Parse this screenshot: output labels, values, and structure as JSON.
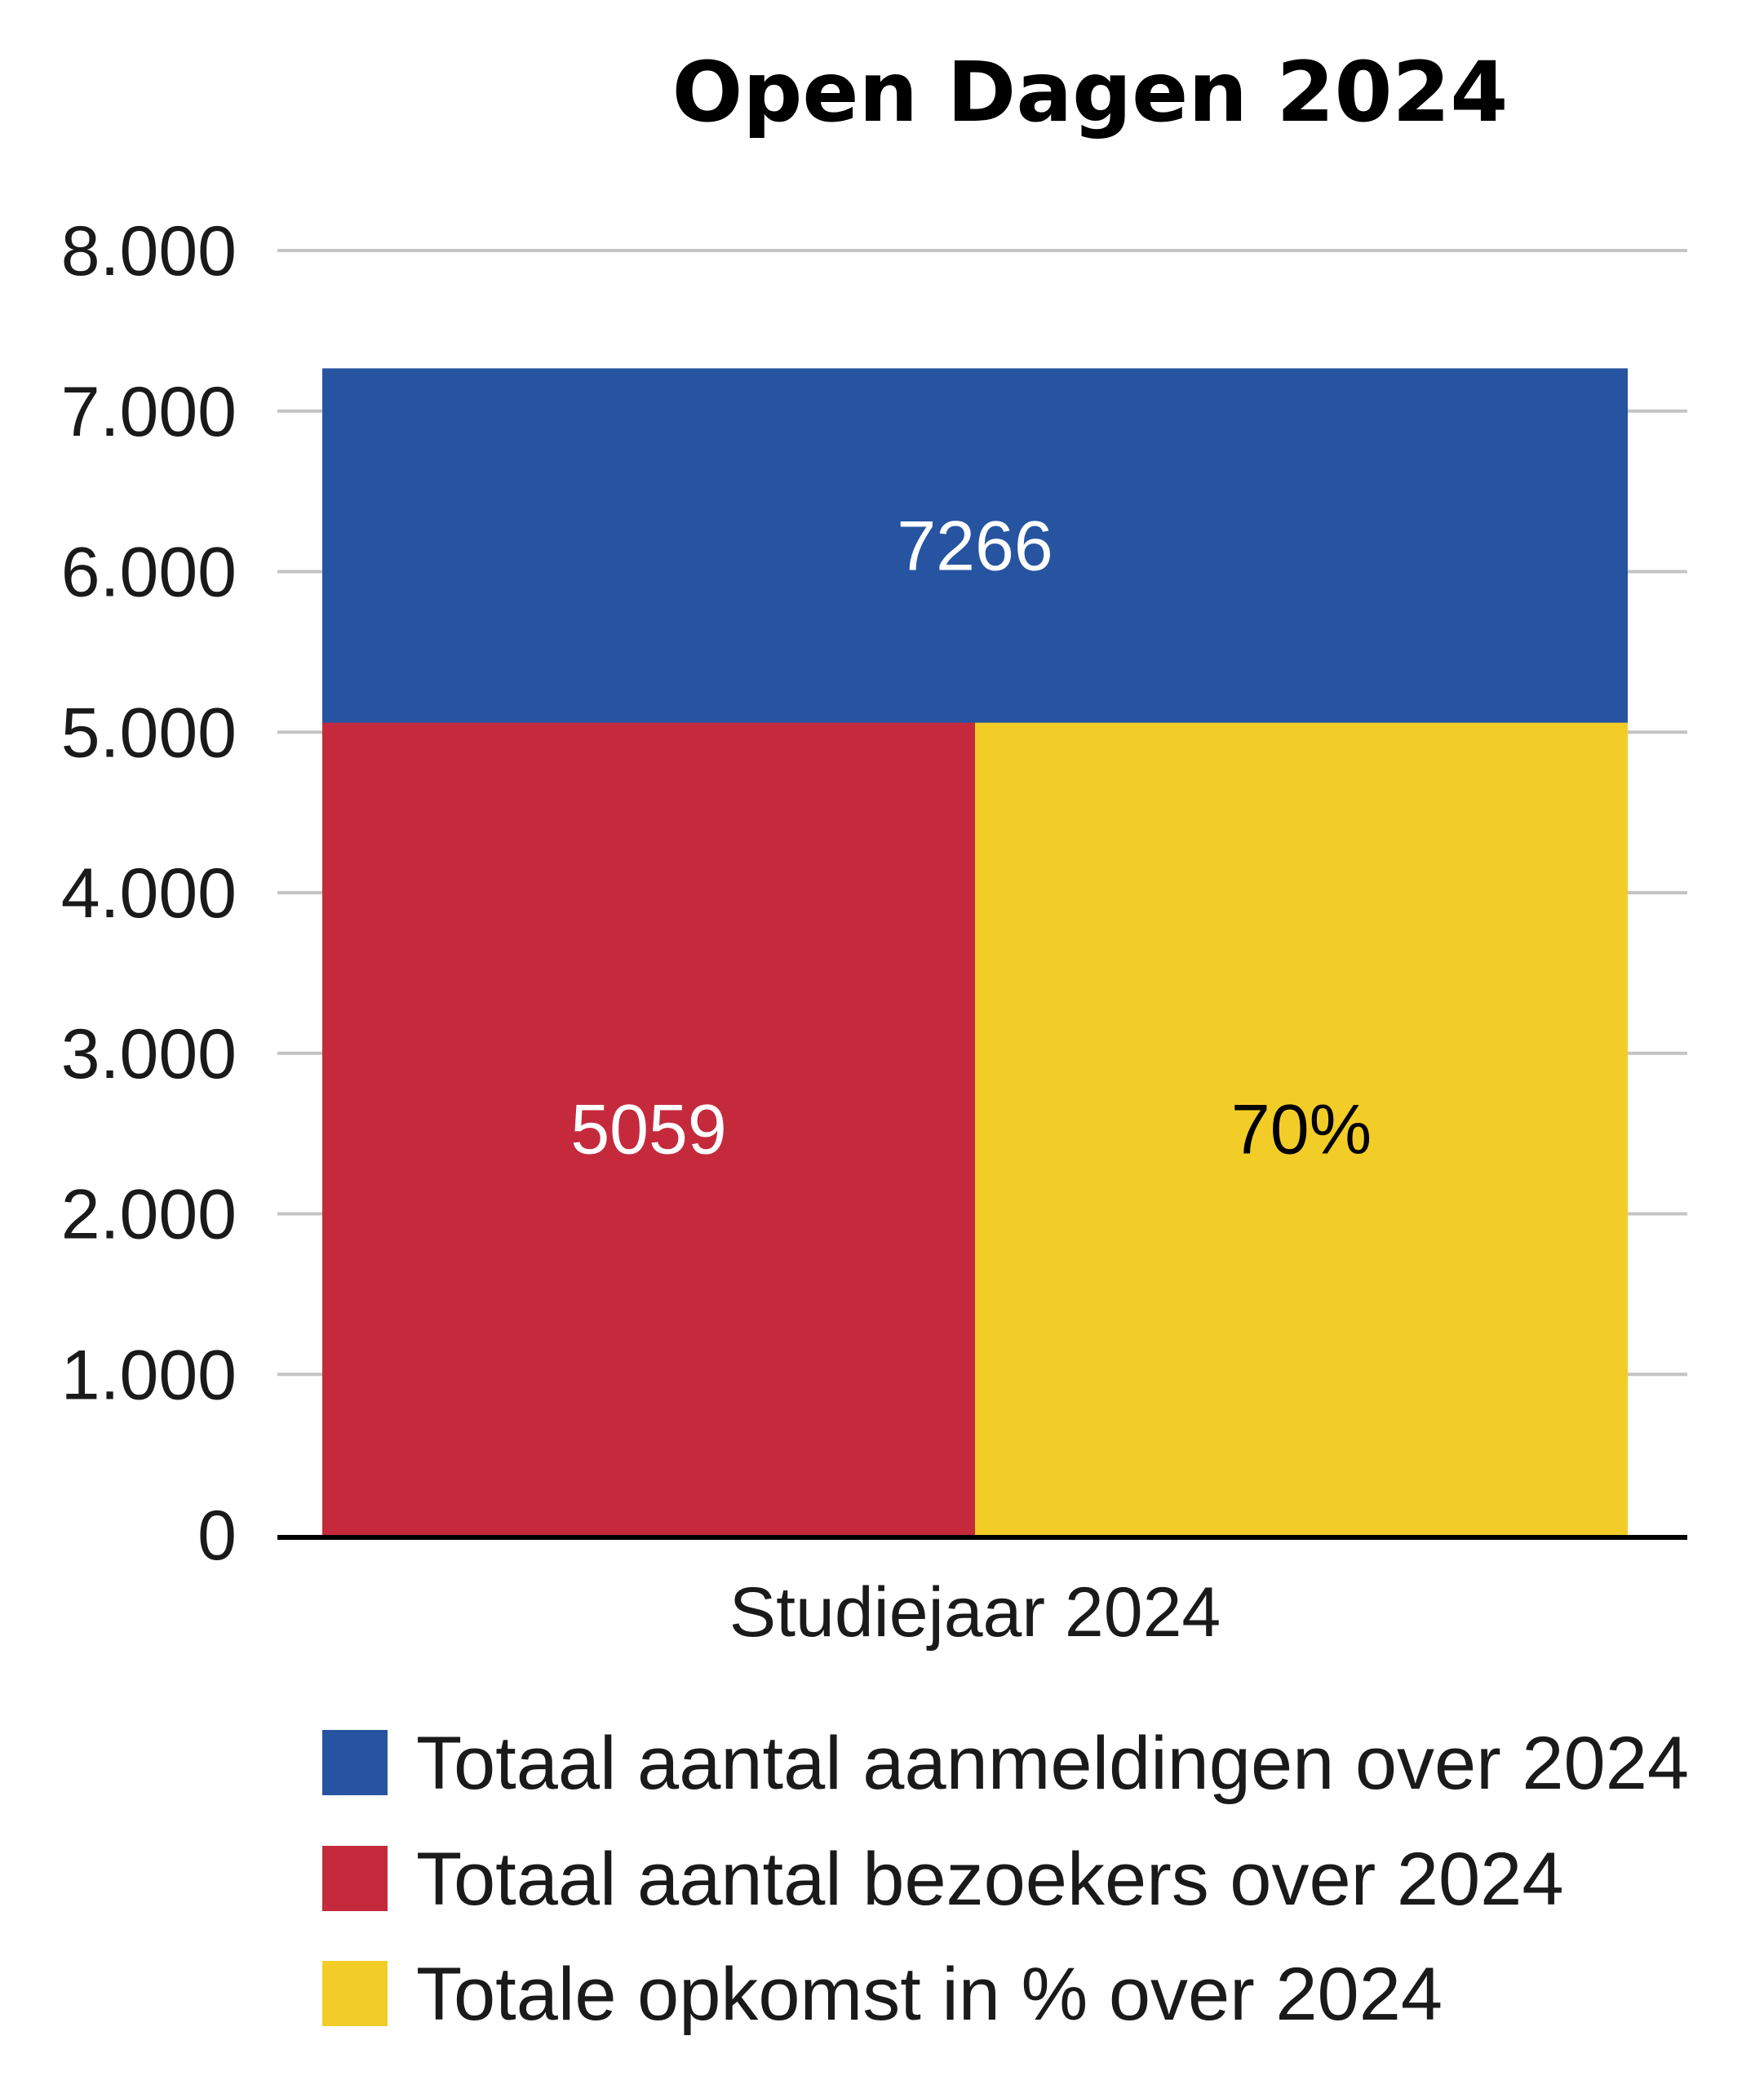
{
  "chart_data": {
    "type": "bar",
    "title": "Open Dagen 2024",
    "categories": [
      "Studiejaar 2024"
    ],
    "yticks": [
      "0",
      "1.000",
      "2.000",
      "3.000",
      "4.000",
      "5.000",
      "6.000",
      "7.000",
      "8.000"
    ],
    "ylim": [
      0,
      8000
    ],
    "grid": true,
    "legend_position": "bottom",
    "series": [
      {
        "name": "Totaal aantal aanmeldingen over 2024",
        "values": [
          7266
        ],
        "data_label": "7266",
        "color": "#2754a0",
        "label_color": "#ffffff"
      },
      {
        "name": "Totaal aantal bezoekers over 2024",
        "values": [
          5059
        ],
        "data_label": "5059",
        "color": "#c42a3c",
        "label_color": "#ffffff"
      },
      {
        "name": "Totale opkomst in % over 2024",
        "values": [
          70
        ],
        "data_label": "70%",
        "color": "#f2cd28",
        "label_color": "#000000"
      }
    ]
  }
}
